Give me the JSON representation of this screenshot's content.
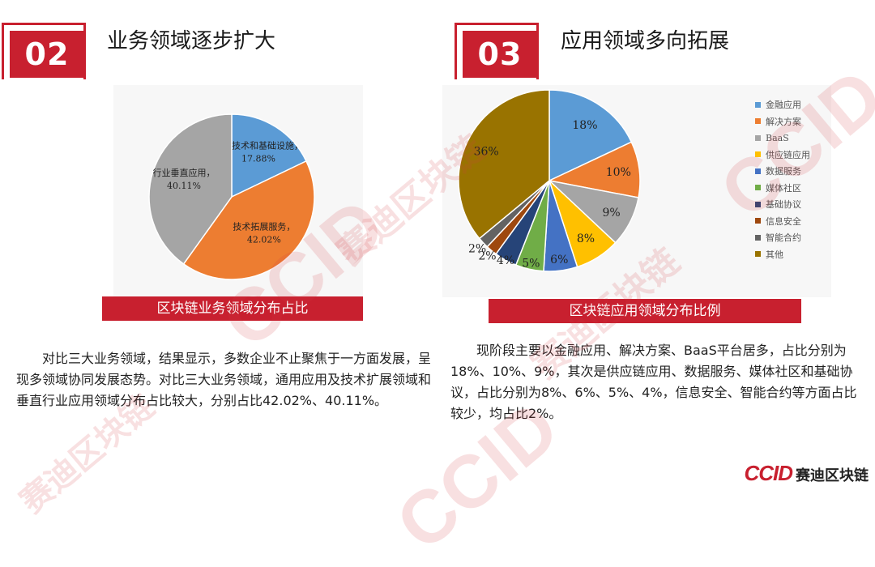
{
  "section_left": {
    "number": "02",
    "title": "业务领域逐步扩大"
  },
  "section_right": {
    "number": "03",
    "title": "应用领域多向拓展"
  },
  "chart_data": [
    {
      "type": "pie",
      "title": "区块链业务领域分布占比",
      "slices": [
        {
          "name": "底层技术和基础设施",
          "value": 17.88,
          "label": "17.88%",
          "color": "#5b9bd5"
        },
        {
          "name": "技术拓展服务",
          "value": 42.02,
          "label": "42.02%",
          "color": "#ed7d31"
        },
        {
          "name": "行业垂直应用",
          "value": 40.11,
          "label": "40.11%",
          "color": "#a5a5a5"
        }
      ]
    },
    {
      "type": "pie",
      "title": "区块链应用领域分布比例",
      "legend_position": "right",
      "slices": [
        {
          "name": "金融应用",
          "value": 18,
          "label": "18%",
          "color": "#5b9bd5"
        },
        {
          "name": "解决方案",
          "value": 10,
          "label": "10%",
          "color": "#ed7d31"
        },
        {
          "name": "BaaS",
          "value": 9,
          "label": "9%",
          "color": "#a5a5a5"
        },
        {
          "name": "供应链应用",
          "value": 8,
          "label": "8%",
          "color": "#ffc000"
        },
        {
          "name": "数据服务",
          "value": 6,
          "label": "6%",
          "color": "#4472c4"
        },
        {
          "name": "媒体社区",
          "value": 5,
          "label": "5%",
          "color": "#70ad47"
        },
        {
          "name": "基础协议",
          "value": 4,
          "label": "4%",
          "color": "#264478"
        },
        {
          "name": "信息安全",
          "value": 2,
          "label": "2%",
          "color": "#9e480e"
        },
        {
          "name": "智能合约",
          "value": 2,
          "label": "2%",
          "color": "#636363"
        },
        {
          "name": "其他",
          "value": 36,
          "label": "36%",
          "color": "#997300"
        }
      ]
    }
  ],
  "text_left": "对比三大业务领域，结果显示，多数企业不止聚焦于一方面发展，呈现多领域协同发展态势。对比三大业务领域，通用应用及技术扩展领域和垂直行业应用领域分布占比较大，分别占比42.02%、40.11%。",
  "text_right": "现阶段主要以金融应用、解决方案、BaaS平台居多，占比分别为18%、10%、9%，其次是供应链应用、数据服务、媒体社区和基础协议，占比分别为8%、6%、5%、4%，信息安全、智能合约等方面占比较少，均占比2%。",
  "watermark": {
    "brand": "CCID",
    "name": "赛迪区块链"
  },
  "logo": {
    "brand": "CCID",
    "name": "赛迪区块链"
  }
}
